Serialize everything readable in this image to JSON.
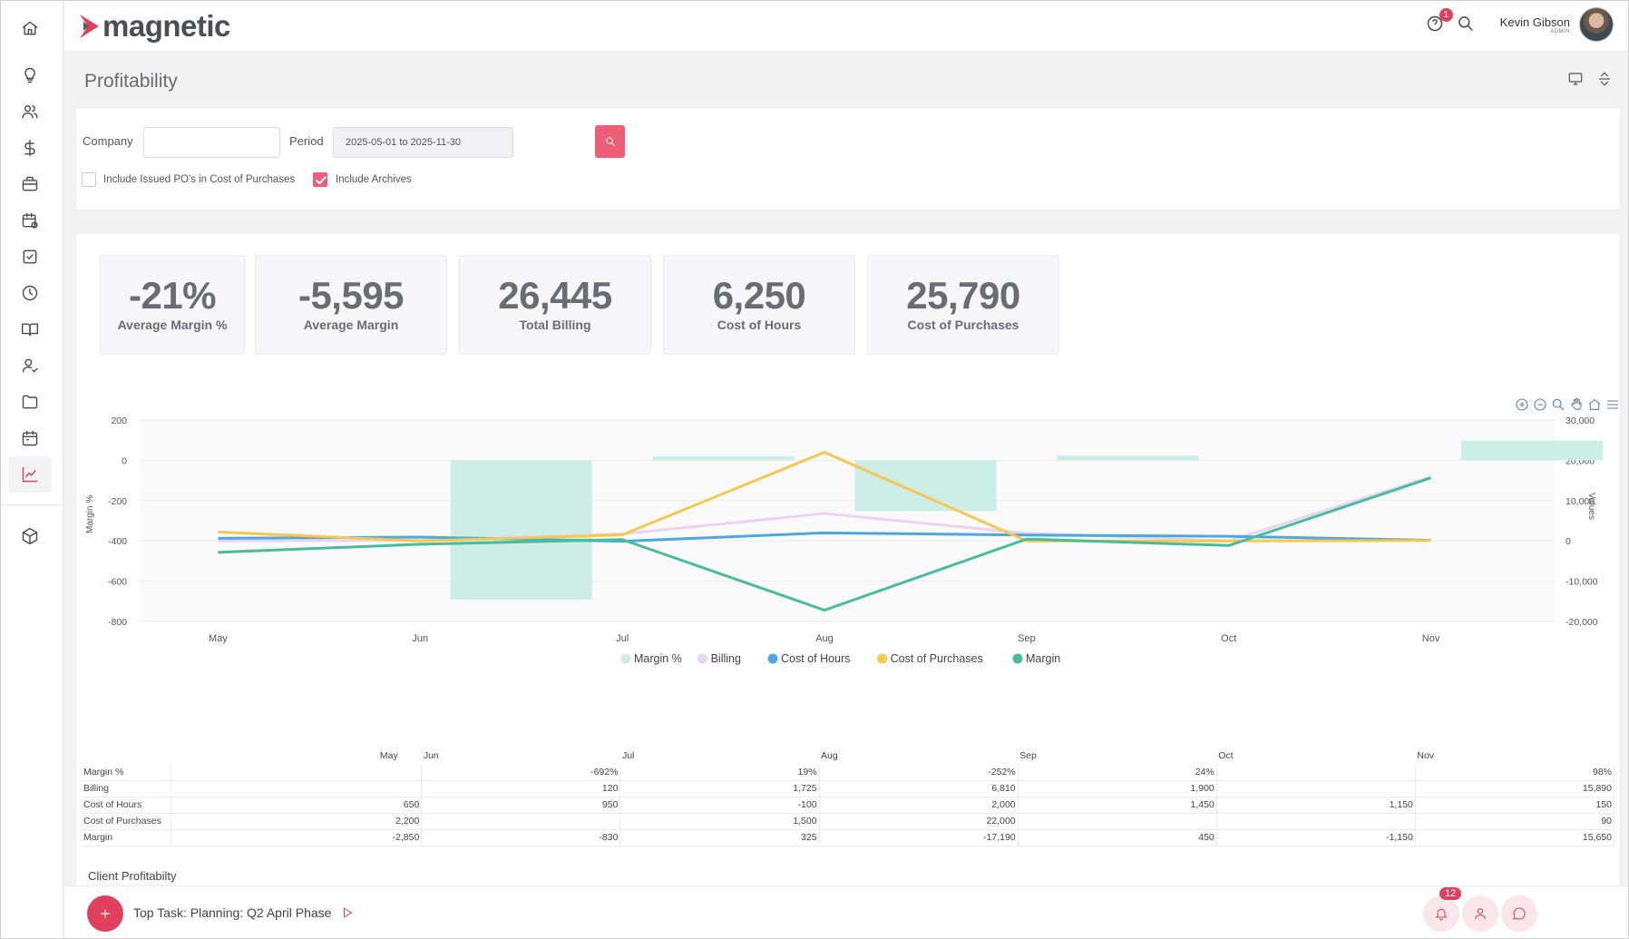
{
  "app": {
    "logo_text": "magnetic"
  },
  "header": {
    "help_badge": "1",
    "user_name": "Kevin Gibson",
    "user_role": "ADMIN"
  },
  "page": {
    "title": "Profitability"
  },
  "filters": {
    "company_label": "Company",
    "company_value": "",
    "period_label": "Period",
    "period_value": "2025-05-01 to 2025-11-30",
    "include_pos_label": "Include Issued PO's in Cost of Purchases",
    "include_pos_checked": false,
    "include_archives_label": "Include Archives",
    "include_archives_checked": true
  },
  "kpis": [
    {
      "value": "-21%",
      "label": "Average Margin %"
    },
    {
      "value": "-5,595",
      "label": "Average Margin"
    },
    {
      "value": "26,445",
      "label": "Total Billing"
    },
    {
      "value": "6,250",
      "label": "Cost of Hours"
    },
    {
      "value": "25,790",
      "label": "Cost of Purchases"
    }
  ],
  "chart_data": {
    "type": "bar+line",
    "categories": [
      "May",
      "Jun",
      "Jul",
      "Aug",
      "Sep",
      "Oct",
      "Nov"
    ],
    "y_left": {
      "label": "Margin %",
      "ticks": [
        "200",
        "0",
        "-200",
        "-400",
        "-600",
        "-800"
      ],
      "range": [
        -800,
        200
      ]
    },
    "y_right": {
      "label": "Values",
      "ticks": [
        "30,000",
        "20,000",
        "10,000",
        "0",
        "-10,000",
        "-20,000"
      ],
      "range": [
        -20000,
        30000
      ]
    },
    "series": [
      {
        "name": "Margin %",
        "type": "bar",
        "axis": "left",
        "color": "#cdeee6",
        "values": [
          null,
          -692,
          19,
          -252,
          24,
          null,
          98
        ]
      },
      {
        "name": "Billing",
        "type": "line",
        "axis": "right",
        "color": "#ead4f3",
        "values": [
          0,
          120,
          1725,
          6810,
          1900,
          0,
          15890
        ]
      },
      {
        "name": "Cost of Hours",
        "type": "line",
        "axis": "right",
        "color": "#4ba8e0",
        "values": [
          650,
          950,
          -100,
          2000,
          1450,
          1150,
          150
        ]
      },
      {
        "name": "Cost of Purchases",
        "type": "line",
        "axis": "right",
        "color": "#f5c84f",
        "values": [
          2200,
          0,
          1500,
          22000,
          0,
          0,
          90
        ]
      },
      {
        "name": "Margin",
        "type": "line",
        "axis": "right",
        "color": "#47bd9a",
        "values": [
          -2850,
          -830,
          325,
          -17190,
          450,
          -1150,
          15650
        ]
      }
    ]
  },
  "table": {
    "months": [
      "May",
      "Jun",
      "Jul",
      "Aug",
      "Sep",
      "Oct",
      "Nov"
    ],
    "rows": [
      {
        "label": "Margin %",
        "cells": [
          "",
          "-692%",
          "19%",
          "-252%",
          "24%",
          "",
          "98%"
        ]
      },
      {
        "label": "Billing",
        "cells": [
          "",
          "120",
          "1,725",
          "6,810",
          "1,900",
          "",
          "15,890"
        ]
      },
      {
        "label": "Cost of Hours",
        "cells": [
          "650",
          "950",
          "-100",
          "2,000",
          "1,450",
          "1,150",
          "150"
        ]
      },
      {
        "label": "Cost of Purchases",
        "cells": [
          "2,200",
          "",
          "1,500",
          "22,000",
          "",
          "",
          "90"
        ]
      },
      {
        "label": "Margin",
        "cells": [
          "-2,850",
          "-830",
          "325",
          "-17,190",
          "450",
          "-1,150",
          "15,650"
        ]
      }
    ]
  },
  "section": {
    "client_title": "Client Profitabilty"
  },
  "bottom": {
    "top_task": "Top Task: Planning: Q2 April Phase",
    "notifications_badge": "12"
  }
}
